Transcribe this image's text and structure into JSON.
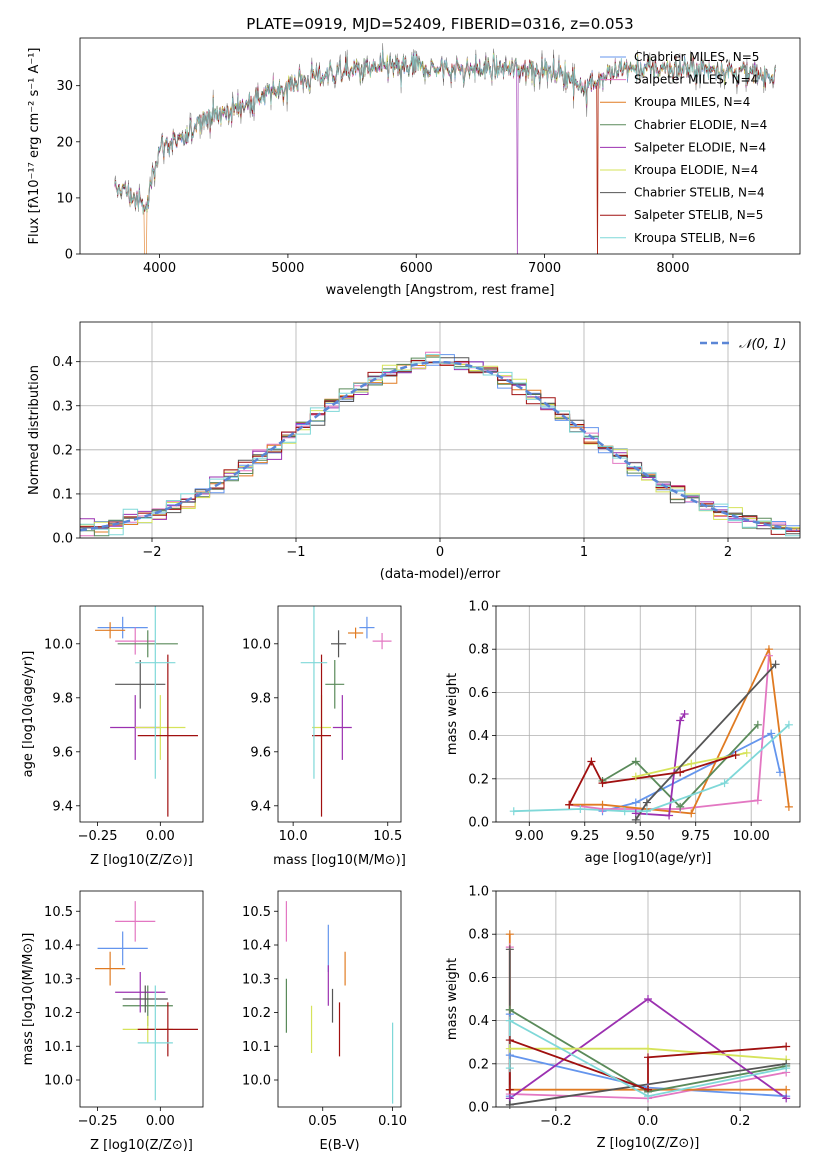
{
  "colors": [
    "#6495ed",
    "#e377c2",
    "#e07b22",
    "#5a8a5a",
    "#9b30b0",
    "#d6e35a",
    "#555555",
    "#a01010",
    "#7fd8d8"
  ],
  "chart_data": [
    {
      "id": "spectrum",
      "type": "line",
      "title": "PLATE=0919, MJD=52409, FIBERID=0316, z=0.053",
      "xlabel": "wavelength [Angstrom, rest frame]",
      "ylabel": "Flux [fλ10⁻¹⁷ erg cm⁻² s⁻¹ A⁻¹]",
      "xlim": [
        3380,
        8990
      ],
      "ylim": [
        0,
        38.5
      ],
      "xticks": [
        "4000",
        "5000",
        "6000",
        "7000",
        "8000"
      ],
      "yticks": [
        "0",
        "10",
        "20",
        "30"
      ],
      "data_envelope": {
        "x": [
          3650,
          3700,
          3800,
          3900,
          3950,
          4000,
          4100,
          4200,
          4300,
          4400,
          4500,
          4700,
          4900,
          5100,
          5300,
          5500,
          5700,
          5900,
          6100,
          6300,
          6500,
          6700,
          6900,
          7100,
          7300,
          7400,
          7500,
          7600,
          7800,
          8000,
          8200,
          8400,
          8600,
          8800
        ],
        "y": [
          11,
          12,
          10,
          8,
          15,
          19,
          20,
          20,
          24,
          25,
          25,
          27,
          29,
          31,
          32,
          32.5,
          33,
          33.5,
          33,
          33,
          33,
          33,
          33,
          32.5,
          30,
          31,
          32,
          33,
          33,
          33,
          33,
          33,
          32,
          32
        ]
      },
      "legend": [
        "Chabrier MILES, N_SSP=5",
        "Salpeter MILES, N_SSP=4",
        "Kroupa MILES, N_SSP=4",
        "Chabrier ELODIE, N_SSP=4",
        "Salpeter ELODIE, N_SSP=4",
        "Kroupa ELODIE, N_SSP=4",
        "Chabrier STELIB, N_SSP=4",
        "Salpeter STELIB, N_SSP=5",
        "Kroupa STELIB, N_SSP=6"
      ],
      "legend_placement": "right"
    },
    {
      "id": "residual-hist",
      "type": "line",
      "xlabel": "(data-model)/error",
      "ylabel": "Normed distribution",
      "xlim": [
        -2.5,
        2.5
      ],
      "ylim": [
        0,
        0.49
      ],
      "xticks": [
        "−2",
        "−1",
        "0",
        "1",
        "2"
      ],
      "yticks": [
        "0.0",
        "0.1",
        "0.2",
        "0.3",
        "0.4"
      ],
      "reference_curve": "N(0,1)",
      "legend": [
        "𝒩(0, 1)"
      ],
      "grid": true,
      "bin_width": 0.1
    },
    {
      "id": "age-vs-Z",
      "type": "scatter",
      "xlabel": "Z [log10(Z/Z⊙)]",
      "ylabel": "age  [log10(age/yr)]",
      "xlim": [
        -0.32,
        0.17
      ],
      "ylim": [
        9.34,
        10.14
      ],
      "xticks": [
        "−0.25",
        "0.00"
      ],
      "yticks": [
        "9.4",
        "9.6",
        "9.8",
        "10.0"
      ],
      "points": [
        {
          "x": -0.15,
          "y": 10.06,
          "xe": 0.1,
          "ye": 0.04
        },
        {
          "x": -0.1,
          "y": 10.01,
          "xe": 0.08,
          "ye": 0.05
        },
        {
          "x": -0.2,
          "y": 10.05,
          "xe": 0.06,
          "ye": 0.03
        },
        {
          "x": -0.05,
          "y": 10.0,
          "xe": 0.12,
          "ye": 0.05
        },
        {
          "x": -0.1,
          "y": 9.69,
          "xe": 0.1,
          "ye": 0.12
        },
        {
          "x": 0.0,
          "y": 9.69,
          "xe": 0.1,
          "ye": 0.12
        },
        {
          "x": -0.08,
          "y": 9.85,
          "xe": 0.1,
          "ye": 0.09
        },
        {
          "x": 0.03,
          "y": 9.66,
          "xe": 0.12,
          "ye": 0.3
        },
        {
          "x": -0.02,
          "y": 9.93,
          "xe": 0.08,
          "ye": 0.43
        }
      ]
    },
    {
      "id": "age-vs-mass",
      "type": "scatter",
      "xlabel": "mass [log10(M/M⊙)]",
      "ylabel": "",
      "xlim": [
        9.92,
        10.57
      ],
      "ylim": [
        9.34,
        10.14
      ],
      "xticks": [
        "10.0",
        "10.5"
      ],
      "yticks": [
        "9.4",
        "9.6",
        "9.8",
        "10.0"
      ],
      "points": [
        {
          "x": 10.39,
          "y": 10.06,
          "xe": 0.04,
          "ye": 0.04
        },
        {
          "x": 10.47,
          "y": 10.01,
          "xe": 0.05,
          "ye": 0.03
        },
        {
          "x": 10.33,
          "y": 10.04,
          "xe": 0.04,
          "ye": 0.02
        },
        {
          "x": 10.22,
          "y": 9.85,
          "xe": 0.05,
          "ye": 0.09
        },
        {
          "x": 10.26,
          "y": 9.69,
          "xe": 0.05,
          "ye": 0.12
        },
        {
          "x": 10.15,
          "y": 9.69,
          "xe": 0.05,
          "ye": 0.12
        },
        {
          "x": 10.24,
          "y": 10.0,
          "xe": 0.04,
          "ye": 0.05
        },
        {
          "x": 10.15,
          "y": 9.66,
          "xe": 0.05,
          "ye": 0.3
        },
        {
          "x": 10.11,
          "y": 9.93,
          "xe": 0.07,
          "ye": 0.43
        }
      ]
    },
    {
      "id": "mass-weight-vs-age",
      "type": "line",
      "xlabel": "age  [log10(age/yr)]",
      "ylabel": "mass weight",
      "xlim": [
        8.85,
        10.22
      ],
      "ylim": [
        0,
        1.0
      ],
      "xticks": [
        "9.00",
        "9.25",
        "9.50",
        "9.75",
        "10.00"
      ],
      "yticks": [
        "0.0",
        "0.2",
        "0.4",
        "0.6",
        "0.8",
        "1.0"
      ],
      "grid": true,
      "series": [
        {
          "x": [
            9.33,
            9.48,
            10.09,
            10.13
          ],
          "y": [
            0.05,
            0.09,
            0.41,
            0.23
          ]
        },
        {
          "x": [
            9.18,
            9.33,
            9.68,
            10.03,
            10.08
          ],
          "y": [
            0.08,
            0.06,
            0.06,
            0.1,
            0.77
          ]
        },
        {
          "x": [
            9.18,
            9.33,
            9.73,
            10.08,
            10.17
          ],
          "y": [
            0.08,
            0.08,
            0.04,
            0.8,
            0.07
          ]
        },
        {
          "x": [
            9.33,
            9.48,
            9.68,
            10.03
          ],
          "y": [
            0.19,
            0.28,
            0.07,
            0.45
          ]
        },
        {
          "x": [
            9.48,
            9.63,
            9.68,
            9.7
          ],
          "y": [
            0.04,
            0.03,
            0.47,
            0.5
          ]
        },
        {
          "x": [
            9.48,
            9.73,
            9.98
          ],
          "y": [
            0.21,
            0.27,
            0.32
          ]
        },
        {
          "x": [
            9.48,
            9.53,
            10.11
          ],
          "y": [
            0.01,
            0.09,
            0.73
          ]
        },
        {
          "x": [
            9.18,
            9.28,
            9.33,
            9.68,
            9.93
          ],
          "y": [
            0.08,
            0.28,
            0.18,
            0.23,
            0.31
          ]
        },
        {
          "x": [
            8.93,
            9.23,
            9.43,
            9.53,
            9.88,
            10.17
          ],
          "y": [
            0.05,
            0.06,
            0.05,
            0.05,
            0.18,
            0.45
          ]
        }
      ]
    },
    {
      "id": "mass-vs-Z",
      "type": "scatter",
      "xlabel": "Z [log10(Z/Z⊙)]",
      "ylabel": "mass [log10(M/M⊙)]",
      "xlim": [
        -0.32,
        0.17
      ],
      "ylim": [
        9.92,
        10.56
      ],
      "xticks": [
        "−0.25",
        "0.00"
      ],
      "yticks": [
        "10.0",
        "10.1",
        "10.2",
        "10.3",
        "10.4",
        "10.5"
      ],
      "points": [
        {
          "x": -0.15,
          "y": 10.39,
          "xe": 0.1,
          "ye": 0.05
        },
        {
          "x": -0.1,
          "y": 10.47,
          "xe": 0.08,
          "ye": 0.06
        },
        {
          "x": -0.2,
          "y": 10.33,
          "xe": 0.06,
          "ye": 0.05
        },
        {
          "x": -0.05,
          "y": 10.22,
          "xe": 0.1,
          "ye": 0.06
        },
        {
          "x": -0.08,
          "y": 10.26,
          "xe": 0.1,
          "ye": 0.06
        },
        {
          "x": -0.05,
          "y": 10.15,
          "xe": 0.1,
          "ye": 0.04
        },
        {
          "x": -0.06,
          "y": 10.24,
          "xe": 0.09,
          "ye": 0.04
        },
        {
          "x": 0.03,
          "y": 10.15,
          "xe": 0.12,
          "ye": 0.08
        },
        {
          "x": -0.02,
          "y": 10.11,
          "xe": 0.07,
          "ye": 0.17
        }
      ]
    },
    {
      "id": "mass-vs-ebv",
      "type": "scatter",
      "xlabel": "E(B-V)",
      "ylabel": "",
      "xlim": [
        0.018,
        0.106
      ],
      "ylim": [
        9.92,
        10.56
      ],
      "xticks": [
        "0.05",
        "0.10"
      ],
      "yticks": [
        "10.0",
        "10.1",
        "10.2",
        "10.3",
        "10.4",
        "10.5"
      ],
      "points": [
        {
          "x": 0.054,
          "y": 10.39,
          "xe": 0,
          "ye": 0.07
        },
        {
          "x": 0.024,
          "y": 10.47,
          "xe": 0,
          "ye": 0.06
        },
        {
          "x": 0.066,
          "y": 10.33,
          "xe": 0,
          "ye": 0.05
        },
        {
          "x": 0.024,
          "y": 10.22,
          "xe": 0,
          "ye": 0.08
        },
        {
          "x": 0.054,
          "y": 10.28,
          "xe": 0,
          "ye": 0.06
        },
        {
          "x": 0.042,
          "y": 10.15,
          "xe": 0,
          "ye": 0.07
        },
        {
          "x": 0.057,
          "y": 10.22,
          "xe": 0,
          "ye": 0.05
        },
        {
          "x": 0.062,
          "y": 10.15,
          "xe": 0,
          "ye": 0.08
        },
        {
          "x": 0.1,
          "y": 10.05,
          "xe": 0,
          "ye": 0.12
        }
      ]
    },
    {
      "id": "mass-weight-vs-Z",
      "type": "line",
      "xlabel": "Z [log10(Z/Z⊙)]",
      "ylabel": "mass weight",
      "xlim": [
        -0.33,
        0.33
      ],
      "ylim": [
        0,
        1.0
      ],
      "xticks": [
        "−0.2",
        "0.0",
        "0.2"
      ],
      "yticks": [
        "0.0",
        "0.2",
        "0.4",
        "0.6",
        "0.8",
        "1.0"
      ],
      "grid": true,
      "series": [
        {
          "x": [
            -0.3,
            -0.3,
            -0.3,
            0.0,
            0.3
          ],
          "y": [
            0.43,
            0.05,
            0.24,
            0.09,
            0.05
          ]
        },
        {
          "x": [
            -0.3,
            -0.3,
            0.0,
            0.3
          ],
          "y": [
            0.74,
            0.06,
            0.04,
            0.16
          ]
        },
        {
          "x": [
            -0.3,
            -0.3,
            0.0,
            0.3
          ],
          "y": [
            0.8,
            0.08,
            0.08,
            0.08
          ]
        },
        {
          "x": [
            -0.3,
            -0.3,
            0.0,
            0.3
          ],
          "y": [
            0.45,
            0.45,
            0.07,
            0.19
          ]
        },
        {
          "x": [
            -0.3,
            0.0,
            0.3
          ],
          "y": [
            0.04,
            0.5,
            0.04
          ]
        },
        {
          "x": [
            -0.3,
            0.0,
            0.3
          ],
          "y": [
            0.27,
            0.27,
            0.22
          ]
        },
        {
          "x": [
            -0.3,
            -0.3,
            0.3
          ],
          "y": [
            0.73,
            0.01,
            0.2
          ]
        },
        {
          "x": [
            -0.3,
            -0.3,
            0.0,
            0.0,
            0.3
          ],
          "y": [
            0.08,
            0.31,
            0.08,
            0.23,
            0.28
          ]
        },
        {
          "x": [
            -0.3,
            -0.3,
            0.0,
            0.3
          ],
          "y": [
            0.18,
            0.4,
            0.05,
            0.18
          ]
        }
      ]
    }
  ]
}
